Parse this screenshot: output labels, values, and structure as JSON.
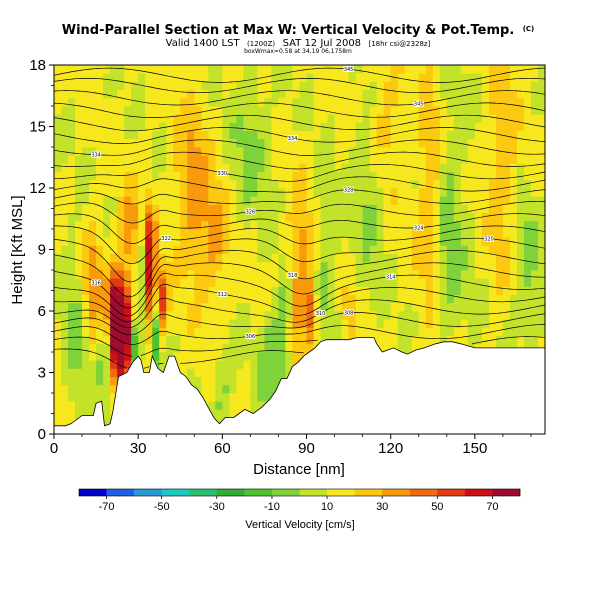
{
  "chart_data": {
    "type": "heatmap",
    "title": "Wind-Parallel Section at Max W: Vertical Velocity & Pot.Temp.",
    "title_superscript": "(C)",
    "subtitle": {
      "valid": "Valid 1400 LST",
      "code": "(1200Z)",
      "date": "SAT 12 Jul 2008",
      "model": "[18hr csi@2328z]",
      "info": "boxWmax=0.58 at 34,19 06,1758m"
    },
    "xlabel": "Distance [nm]",
    "ylabel": "Height [Kft MSL]",
    "xlim": [
      0,
      175
    ],
    "ylim": [
      0,
      18
    ],
    "xticks": [
      0,
      30,
      60,
      90,
      120,
      150
    ],
    "yticks": [
      0,
      3,
      6,
      9,
      12,
      15,
      18
    ],
    "colorbar": {
      "label": "Vertical Velocity [cm/s]",
      "ticks": [
        -70,
        -50,
        -30,
        -10,
        10,
        30,
        50,
        70
      ],
      "colors": [
        "#0000cd",
        "#1f5fe6",
        "#2a9ad9",
        "#20c8c4",
        "#2dbf70",
        "#31ae31",
        "#4dc330",
        "#7fd23a",
        "#c3e22a",
        "#f6e81d",
        "#fdc810",
        "#f99a0c",
        "#f06a10",
        "#e43a14",
        "#cc1218",
        "#a00c30"
      ],
      "range": [
        -80,
        80
      ]
    },
    "terrain": [
      [
        0,
        0.4
      ],
      [
        4,
        0.4
      ],
      [
        6,
        0.5
      ],
      [
        10,
        0.9
      ],
      [
        14,
        0.9
      ],
      [
        15,
        1.5
      ],
      [
        17,
        1.6
      ],
      [
        18,
        0.4
      ],
      [
        20,
        0.5
      ],
      [
        21,
        1.1
      ],
      [
        23,
        2.8
      ],
      [
        26,
        3.0
      ],
      [
        28,
        3.5
      ],
      [
        30,
        3.8
      ],
      [
        31,
        3.6
      ],
      [
        32,
        3.0
      ],
      [
        34,
        3.0
      ],
      [
        35,
        3.8
      ],
      [
        37,
        3.2
      ],
      [
        39,
        3.0
      ],
      [
        41,
        3.8
      ],
      [
        43,
        3.8
      ],
      [
        45,
        3.0
      ],
      [
        47,
        2.8
      ],
      [
        49,
        2.4
      ],
      [
        51,
        2.2
      ],
      [
        53,
        1.8
      ],
      [
        55,
        1.3
      ],
      [
        57,
        0.8
      ],
      [
        59,
        0.5
      ],
      [
        61,
        0.8
      ],
      [
        64,
        0.8
      ],
      [
        66,
        1.0
      ],
      [
        68,
        1.2
      ],
      [
        71,
        1.0
      ],
      [
        74,
        1.3
      ],
      [
        77,
        1.7
      ],
      [
        79,
        2.1
      ],
      [
        81,
        2.7
      ],
      [
        83,
        2.7
      ],
      [
        85,
        3.3
      ],
      [
        87,
        3.5
      ],
      [
        89,
        3.8
      ],
      [
        91,
        4.0
      ],
      [
        93,
        4.2
      ],
      [
        95,
        4.5
      ],
      [
        97,
        4.6
      ],
      [
        105,
        4.6
      ],
      [
        108,
        4.7
      ],
      [
        114,
        4.7
      ],
      [
        115,
        4.4
      ],
      [
        117,
        4.0
      ],
      [
        121,
        4.2
      ],
      [
        124,
        4.0
      ],
      [
        126,
        3.9
      ],
      [
        129,
        4.1
      ],
      [
        132,
        4.2
      ],
      [
        136,
        4.4
      ],
      [
        139,
        4.5
      ],
      [
        142,
        4.5
      ],
      [
        145,
        4.4
      ],
      [
        150,
        4.2
      ],
      [
        155,
        4.2
      ],
      [
        160,
        4.2
      ],
      [
        175,
        4.2
      ]
    ],
    "isentropes": [
      {
        "z": 17.5,
        "label": "345"
      },
      {
        "z": 17.0,
        "label": ""
      },
      {
        "z": 16.4,
        "label": "345"
      },
      {
        "z": 15.8,
        "label": ""
      },
      {
        "z": 15.2,
        "label": ""
      },
      {
        "z": 14.6,
        "label": "334"
      },
      {
        "z": 14.0,
        "label": "334"
      },
      {
        "z": 13.4,
        "label": ""
      },
      {
        "z": 12.8,
        "label": "330"
      },
      {
        "z": 12.2,
        "label": ""
      },
      {
        "z": 11.6,
        "label": "328"
      },
      {
        "z": 11.0,
        "label": "326"
      },
      {
        "z": 10.4,
        "label": "324"
      },
      {
        "z": 9.8,
        "label": "322"
      },
      {
        "z": 9.2,
        "label": "320"
      },
      {
        "z": 8.6,
        "label": "318"
      },
      {
        "z": 8.0,
        "label": "316"
      },
      {
        "z": 7.4,
        "label": "314"
      },
      {
        "z": 6.8,
        "label": "312"
      },
      {
        "z": 6.2,
        "label": "310"
      },
      {
        "z": 5.6,
        "label": "308"
      },
      {
        "z": 5.0,
        "label": "306"
      },
      {
        "z": 4.4,
        "label": ""
      },
      {
        "z": 3.8,
        "label": ""
      }
    ],
    "updrafts": [
      {
        "x": 24,
        "z": 5.0,
        "sx": 2.5,
        "sz": 1.8,
        "w": 90
      },
      {
        "x": 21,
        "z": 6.2,
        "sx": 1.5,
        "sz": 1.2,
        "w": 45
      },
      {
        "x": 34,
        "z": 8.0,
        "sx": 1.6,
        "sz": 2.2,
        "w": 55
      },
      {
        "x": 39,
        "z": 6.5,
        "sx": 1.2,
        "sz": 1.2,
        "w": 40
      },
      {
        "x": 14,
        "z": 7.5,
        "sx": 2.5,
        "sz": 2.0,
        "w": 28
      },
      {
        "x": 27,
        "z": 10.0,
        "sx": 2.5,
        "sz": 1.5,
        "w": 25
      },
      {
        "x": 88,
        "z": 7.5,
        "sx": 3.0,
        "sz": 3.0,
        "w": 28
      },
      {
        "x": 92,
        "z": 5.8,
        "sx": 1.2,
        "sz": 1.0,
        "w": 35
      },
      {
        "x": 49,
        "z": 12.0,
        "sx": 4.0,
        "sz": 3.0,
        "w": 22
      },
      {
        "x": 57,
        "z": 9.5,
        "sx": 4.0,
        "sz": 2.0,
        "w": 20
      },
      {
        "x": 105,
        "z": 6.0,
        "sx": 1.0,
        "sz": 1.0,
        "w": 25
      },
      {
        "x": 134,
        "z": 12.0,
        "sx": 3.0,
        "sz": 4.5,
        "w": 20
      },
      {
        "x": 160,
        "z": 13.0,
        "sx": 3.5,
        "sz": 4.0,
        "w": 18
      },
      {
        "x": 118,
        "z": 15.5,
        "sx": 4.0,
        "sz": 2.5,
        "w": 15
      }
    ],
    "downdrafts": [
      {
        "x": 29,
        "z": 4.2,
        "sx": 1.0,
        "sz": 1.0,
        "w": -45
      },
      {
        "x": 36,
        "z": 4.5,
        "sx": 1.2,
        "sz": 1.2,
        "w": -35
      },
      {
        "x": 31,
        "z": 8.0,
        "sx": 1.0,
        "sz": 2.0,
        "w": -25
      },
      {
        "x": 18,
        "z": 3.5,
        "sx": 1.5,
        "sz": 1.5,
        "w": -20
      },
      {
        "x": 77,
        "z": 3.5,
        "sx": 3.0,
        "sz": 2.0,
        "w": -18
      },
      {
        "x": 60,
        "z": 2.0,
        "sx": 2.5,
        "sz": 1.5,
        "w": -15
      },
      {
        "x": 82,
        "z": 5.0,
        "sx": 2.0,
        "sz": 2.0,
        "w": -20
      },
      {
        "x": 97,
        "z": 8.0,
        "sx": 3.0,
        "sz": 2.5,
        "w": -15
      },
      {
        "x": 141,
        "z": 10.0,
        "sx": 4.0,
        "sz": 4.0,
        "w": -18
      },
      {
        "x": 112,
        "z": 12.0,
        "sx": 4.0,
        "sz": 3.0,
        "w": -15
      },
      {
        "x": 70,
        "z": 14.0,
        "sx": 5.0,
        "sz": 2.5,
        "w": -14
      },
      {
        "x": 8,
        "z": 5.0,
        "sx": 3.0,
        "sz": 3.0,
        "w": -15
      },
      {
        "x": 168,
        "z": 8.0,
        "sx": 4.0,
        "sz": 3.0,
        "w": -14
      }
    ]
  }
}
